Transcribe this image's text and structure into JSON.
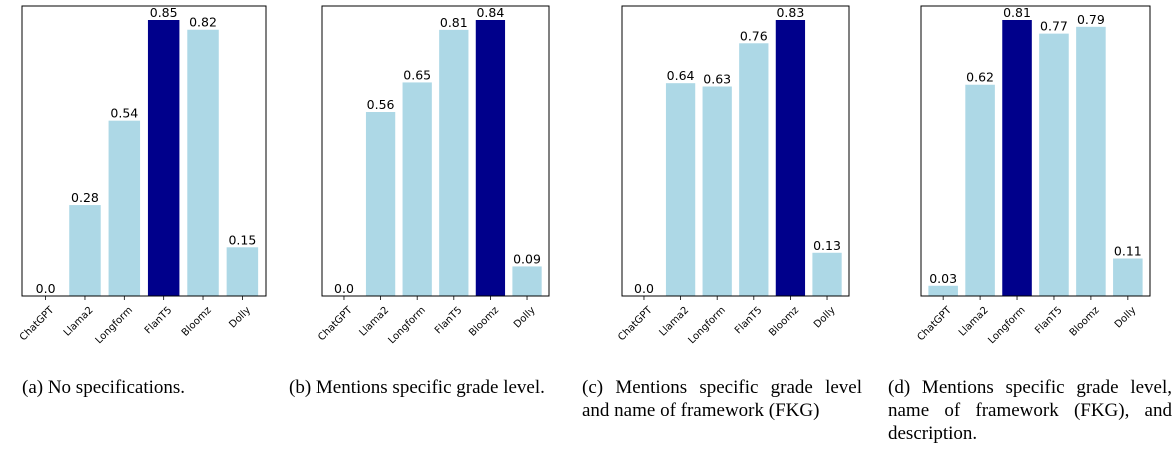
{
  "colors": {
    "default_bar": "#add8e6",
    "highlight_bar": "#00008b"
  },
  "chart_data": [
    {
      "type": "bar",
      "categories": [
        "ChatGPT",
        "Llama2",
        "Longform",
        "FlanT5",
        "Bloomz",
        "Dolly"
      ],
      "values": [
        0.0,
        0.28,
        0.54,
        0.85,
        0.82,
        0.15
      ],
      "labels": [
        "0.0",
        "0.28",
        "0.54",
        "0.85",
        "0.82",
        "0.15"
      ],
      "highlight": "FlanT5",
      "ylim": [
        0,
        0.85
      ],
      "caption": "(a) No specifications."
    },
    {
      "type": "bar",
      "categories": [
        "ChatGPT",
        "Llama2",
        "Longform",
        "FlanT5",
        "Bloomz",
        "Dolly"
      ],
      "values": [
        0.0,
        0.56,
        0.65,
        0.81,
        0.84,
        0.09
      ],
      "labels": [
        "0.0",
        "0.56",
        "0.65",
        "0.81",
        "0.84",
        "0.09"
      ],
      "highlight": "Bloomz",
      "ylim": [
        0,
        0.84
      ],
      "caption": "(b) Mentions specific grade level."
    },
    {
      "type": "bar",
      "categories": [
        "ChatGPT",
        "Llama2",
        "Longform",
        "FlanT5",
        "Bloomz",
        "Dolly"
      ],
      "values": [
        0.0,
        0.64,
        0.63,
        0.76,
        0.83,
        0.13
      ],
      "labels": [
        "0.0",
        "0.64",
        "0.63",
        "0.76",
        "0.83",
        "0.13"
      ],
      "highlight": "Bloomz",
      "ylim": [
        0,
        0.83
      ],
      "caption": "(c) Mentions specific grade level and name of framework (FKG)"
    },
    {
      "type": "bar",
      "categories": [
        "ChatGPT",
        "Llama2",
        "Longform",
        "FlanT5",
        "Bloomz",
        "Dolly"
      ],
      "values": [
        0.03,
        0.62,
        0.81,
        0.77,
        0.79,
        0.11
      ],
      "labels": [
        "0.03",
        "0.62",
        "0.81",
        "0.77",
        "0.79",
        "0.11"
      ],
      "highlight": "Longform",
      "ylim": [
        0,
        0.81
      ],
      "caption": "(d) Mentions specific grade level, name of framework (FKG), and description."
    }
  ]
}
